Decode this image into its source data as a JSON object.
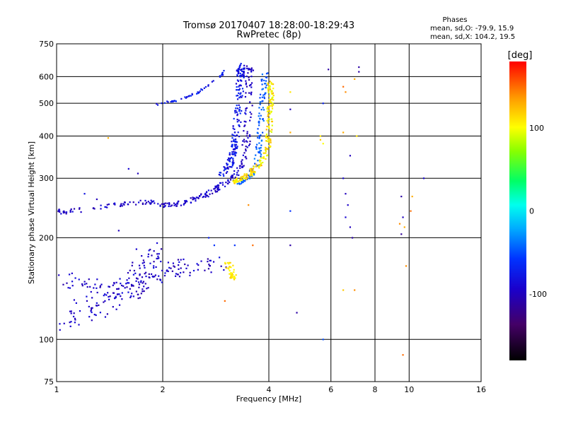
{
  "chart_data": {
    "type": "scatter",
    "title_line1": "Tromsø 20170407 18:28:00-18:29:43",
    "title_line2": "RwPretec (8p)",
    "info": {
      "heading": "Phases",
      "line1": "mean, sd,O: -79.9, 15.9",
      "line2": "mean, sd,X: 104.2, 19.5"
    },
    "xlabel": "Frequency [MHz]",
    "ylabel": "Stationary phase Virtual Height [km]",
    "x_scale": "log",
    "y_scale": "log",
    "xlim": [
      1,
      16
    ],
    "ylim": [
      75,
      750
    ],
    "x_ticks": [
      1,
      2,
      4,
      6,
      8,
      10,
      16
    ],
    "x_grid": [
      2,
      4,
      6,
      8,
      10
    ],
    "y_ticks": [
      75,
      100,
      200,
      300,
      400,
      500,
      600,
      750
    ],
    "y_grid": [
      100,
      200,
      300,
      400,
      500,
      600
    ],
    "colorbar": {
      "label": "[deg]",
      "range": [
        -180,
        180
      ],
      "ticks": [
        100,
        0,
        -100
      ]
    },
    "traces": [
      {
        "name": "O-mode bottom trace",
        "points": [
          [
            1.0,
            112
          ],
          [
            1.05,
            115
          ],
          [
            1.1,
            118
          ],
          [
            1.2,
            121
          ],
          [
            1.3,
            126
          ],
          [
            1.4,
            130
          ],
          [
            1.5,
            135
          ],
          [
            1.6,
            140
          ],
          [
            1.7,
            147
          ],
          [
            1.8,
            153
          ],
          [
            1.9,
            158
          ],
          [
            2.0,
            162
          ],
          [
            2.2,
            163
          ],
          [
            2.4,
            163
          ],
          [
            2.6,
            165
          ],
          [
            2.8,
            168
          ]
        ],
        "spread_km": 0.22,
        "phase": [
          -110,
          -80
        ],
        "density": 170
      },
      {
        "name": "O-mode low cloud",
        "points": [
          [
            1.05,
            150
          ],
          [
            1.2,
            145
          ],
          [
            1.35,
            140
          ],
          [
            1.5,
            140
          ],
          [
            1.7,
            148
          ],
          [
            1.8,
            175
          ],
          [
            1.9,
            185
          ]
        ],
        "spread_km": 0.18,
        "phase": [
          -110,
          -80
        ],
        "density": 90
      },
      {
        "name": "O-mode E-F trace",
        "points": [
          [
            1.0,
            242
          ],
          [
            1.05,
            238
          ],
          [
            1.45,
            250
          ],
          [
            1.6,
            252
          ],
          [
            1.8,
            255
          ],
          [
            2.0,
            250
          ],
          [
            2.2,
            252
          ],
          [
            2.4,
            258
          ],
          [
            2.6,
            266
          ],
          [
            2.8,
            276
          ],
          [
            3.0,
            290
          ],
          [
            3.2,
            305
          ],
          [
            3.35,
            330
          ],
          [
            3.45,
            380
          ],
          [
            3.5,
            450
          ],
          [
            3.52,
            560
          ],
          [
            3.53,
            650
          ]
        ],
        "spread_km": 0.05,
        "phase": [
          -110,
          -80
        ],
        "density": 260
      },
      {
        "name": "O-mode cusp band",
        "points": [
          [
            2.9,
            300
          ],
          [
            3.1,
            330
          ],
          [
            3.2,
            370
          ],
          [
            3.25,
            430
          ],
          [
            3.3,
            520
          ],
          [
            3.32,
            600
          ],
          [
            3.33,
            650
          ]
        ],
        "spread_km": 0.05,
        "phase": [
          -95,
          -60
        ],
        "density": 200
      },
      {
        "name": "O-mode upper arc",
        "points": [
          [
            1.9,
            495
          ],
          [
            2.2,
            510
          ],
          [
            2.5,
            535
          ],
          [
            2.7,
            565
          ],
          [
            2.9,
            600
          ],
          [
            3.0,
            625
          ]
        ],
        "spread_km": 0.02,
        "phase": [
          -90,
          -60
        ],
        "density": 50
      },
      {
        "name": "cyan cusp",
        "points": [
          [
            3.3,
            290
          ],
          [
            3.5,
            300
          ],
          [
            3.7,
            330
          ],
          [
            3.75,
            380
          ],
          [
            3.8,
            450
          ],
          [
            3.85,
            550
          ],
          [
            3.9,
            610
          ]
        ],
        "spread_km": 0.04,
        "phase": [
          -55,
          -35
        ],
        "density": 120
      },
      {
        "name": "X-mode trace",
        "points": [
          [
            3.1,
            290
          ],
          [
            3.4,
            300
          ],
          [
            3.6,
            315
          ],
          [
            3.8,
            335
          ],
          [
            3.95,
            360
          ],
          [
            4.0,
            400
          ],
          [
            4.02,
            460
          ],
          [
            4.05,
            520
          ],
          [
            4.05,
            580
          ]
        ],
        "spread_km": 0.04,
        "phase": [
          90,
          130
        ],
        "density": 200
      },
      {
        "name": "X-mode low patch",
        "points": [
          [
            3.05,
            170
          ],
          [
            3.1,
            160
          ],
          [
            3.15,
            155
          ],
          [
            3.2,
            150
          ],
          [
            3.15,
            165
          ]
        ],
        "spread_km": 0.04,
        "phase": [
          100,
          120
        ],
        "density": 40
      }
    ],
    "scatter_points": [
      [
        6.5,
        560,
        150
      ],
      [
        6.6,
        540,
        140
      ],
      [
        7.0,
        590,
        130
      ],
      [
        7.2,
        620,
        -110
      ],
      [
        7.1,
        400,
        110
      ],
      [
        6.5,
        410,
        130
      ],
      [
        6.8,
        350,
        -100
      ],
      [
        6.5,
        300,
        -90
      ],
      [
        6.6,
        270,
        -100
      ],
      [
        6.7,
        250,
        -95
      ],
      [
        6.6,
        230,
        -90
      ],
      [
        6.8,
        215,
        -100
      ],
      [
        6.9,
        200,
        -110
      ],
      [
        9.5,
        265,
        -110
      ],
      [
        9.6,
        230,
        -100
      ],
      [
        9.4,
        220,
        140
      ],
      [
        9.7,
        215,
        130
      ],
      [
        9.5,
        205,
        -115
      ],
      [
        10.2,
        265,
        130
      ],
      [
        10.1,
        240,
        150
      ],
      [
        9.8,
        165,
        140
      ],
      [
        9.6,
        90,
        150
      ],
      [
        11.0,
        300,
        -90
      ],
      [
        5.6,
        390,
        120
      ],
      [
        5.6,
        400,
        110
      ],
      [
        5.7,
        380,
        100
      ],
      [
        4.6,
        540,
        110
      ],
      [
        4.6,
        480,
        -100
      ],
      [
        4.6,
        410,
        130
      ],
      [
        4.6,
        240,
        -60
      ],
      [
        4.6,
        190,
        -110
      ],
      [
        4.8,
        120,
        -110
      ],
      [
        3.0,
        130,
        150
      ],
      [
        5.7,
        100,
        -50
      ],
      [
        6.5,
        140,
        120
      ],
      [
        7.0,
        140,
        140
      ],
      [
        5.9,
        630,
        -110
      ],
      [
        5.7,
        500,
        -70
      ],
      [
        1.4,
        395,
        130
      ],
      [
        1.3,
        260,
        -100
      ],
      [
        1.1,
        243,
        -100
      ],
      [
        1.5,
        210,
        -100
      ],
      [
        1.6,
        320,
        -90
      ],
      [
        1.7,
        310,
        -100
      ],
      [
        1.2,
        270,
        -80
      ],
      [
        2.7,
        200,
        -70
      ],
      [
        2.8,
        190,
        -60
      ],
      [
        3.2,
        190,
        -60
      ],
      [
        3.6,
        190,
        150
      ],
      [
        3.5,
        250,
        140
      ],
      [
        7.2,
        640,
        -110
      ]
    ]
  }
}
